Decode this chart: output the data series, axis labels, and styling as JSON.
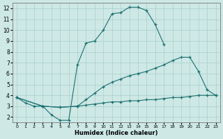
{
  "xlabel": "Humidex (Indice chaleur)",
  "bg_color": "#cde8e5",
  "grid_color": "#aacfcc",
  "line_color": "#1a7070",
  "xlim": [
    -0.5,
    23.5
  ],
  "ylim": [
    1.5,
    12.5
  ],
  "xticks": [
    0,
    1,
    2,
    3,
    4,
    5,
    6,
    7,
    8,
    9,
    10,
    11,
    12,
    13,
    14,
    15,
    16,
    17,
    18,
    19,
    20,
    21,
    22,
    23
  ],
  "yticks": [
    2,
    3,
    4,
    5,
    6,
    7,
    8,
    9,
    10,
    11,
    12
  ],
  "line1": {
    "x": [
      0,
      1,
      2,
      3,
      4,
      5,
      6,
      7,
      8,
      9,
      10,
      11,
      12,
      13,
      14,
      15,
      16,
      17
    ],
    "y": [
      3.8,
      3.3,
      3.0,
      3.0,
      2.2,
      1.7,
      1.7,
      6.8,
      8.8,
      9.0,
      10.0,
      11.5,
      11.6,
      12.1,
      12.1,
      11.8,
      10.5,
      8.7
    ]
  },
  "line2": {
    "x": [
      0,
      3,
      5,
      7,
      8,
      9,
      10,
      11,
      12,
      13,
      14,
      15,
      16,
      17,
      18,
      19,
      20,
      21,
      22,
      23
    ],
    "y": [
      3.8,
      3.0,
      2.9,
      3.0,
      3.6,
      4.2,
      4.8,
      5.2,
      5.5,
      5.8,
      6.0,
      6.2,
      6.5,
      6.8,
      7.2,
      7.5,
      7.5,
      6.2,
      4.5,
      4.0
    ]
  },
  "line3": {
    "x": [
      0,
      3,
      5,
      7,
      8,
      9,
      10,
      11,
      12,
      13,
      14,
      15,
      16,
      17,
      18,
      19,
      20,
      21,
      22,
      23
    ],
    "y": [
      3.8,
      3.0,
      2.9,
      3.0,
      3.1,
      3.2,
      3.3,
      3.4,
      3.4,
      3.5,
      3.5,
      3.6,
      3.6,
      3.7,
      3.8,
      3.8,
      3.9,
      4.0,
      4.0,
      4.0
    ]
  }
}
